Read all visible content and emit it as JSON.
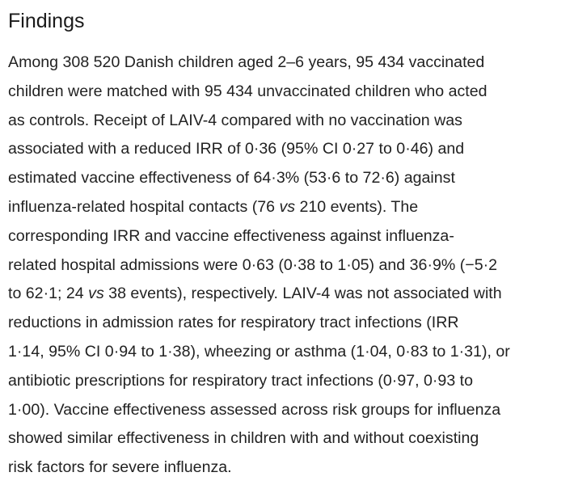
{
  "section": {
    "heading": "Findings",
    "lines": [
      [
        "Among 308 520 Danish children aged 2–6 years, 95 434 vaccinated"
      ],
      [
        "children were matched with 95 434 unvaccinated children who acted"
      ],
      [
        "as controls. Receipt of LAIV-4 compared with no vaccination was"
      ],
      [
        "associated with a reduced IRR of 0·36 (95% CI 0·27 to 0·46) and"
      ],
      [
        "estimated vaccine effectiveness of 64·3% (53·6 to 72·6) against"
      ],
      [
        "influenza-related hospital contacts (76 ",
        "vs",
        " 210 events). The"
      ],
      [
        "corresponding IRR and vaccine effectiveness against influenza-"
      ],
      [
        "related hospital admissions were 0·63 (0·38 to 1·05) and 36·9% (−5·2"
      ],
      [
        "to 62·1; 24 ",
        "vs",
        " 38 events), respectively. LAIV-4 was not associated with"
      ],
      [
        "reductions in admission rates for respiratory tract infections (IRR"
      ],
      [
        "1·14, 95% CI 0·94 to 1·38), wheezing or asthma (1·04, 0·83 to 1·31), or"
      ],
      [
        "antibiotic prescriptions for respiratory tract infections (0·97, 0·93 to"
      ],
      [
        "1·00). Vaccine effectiveness assessed across risk groups for influenza"
      ],
      [
        "showed similar effectiveness in children with and without coexisting"
      ],
      [
        "risk factors for severe influenza."
      ]
    ]
  }
}
